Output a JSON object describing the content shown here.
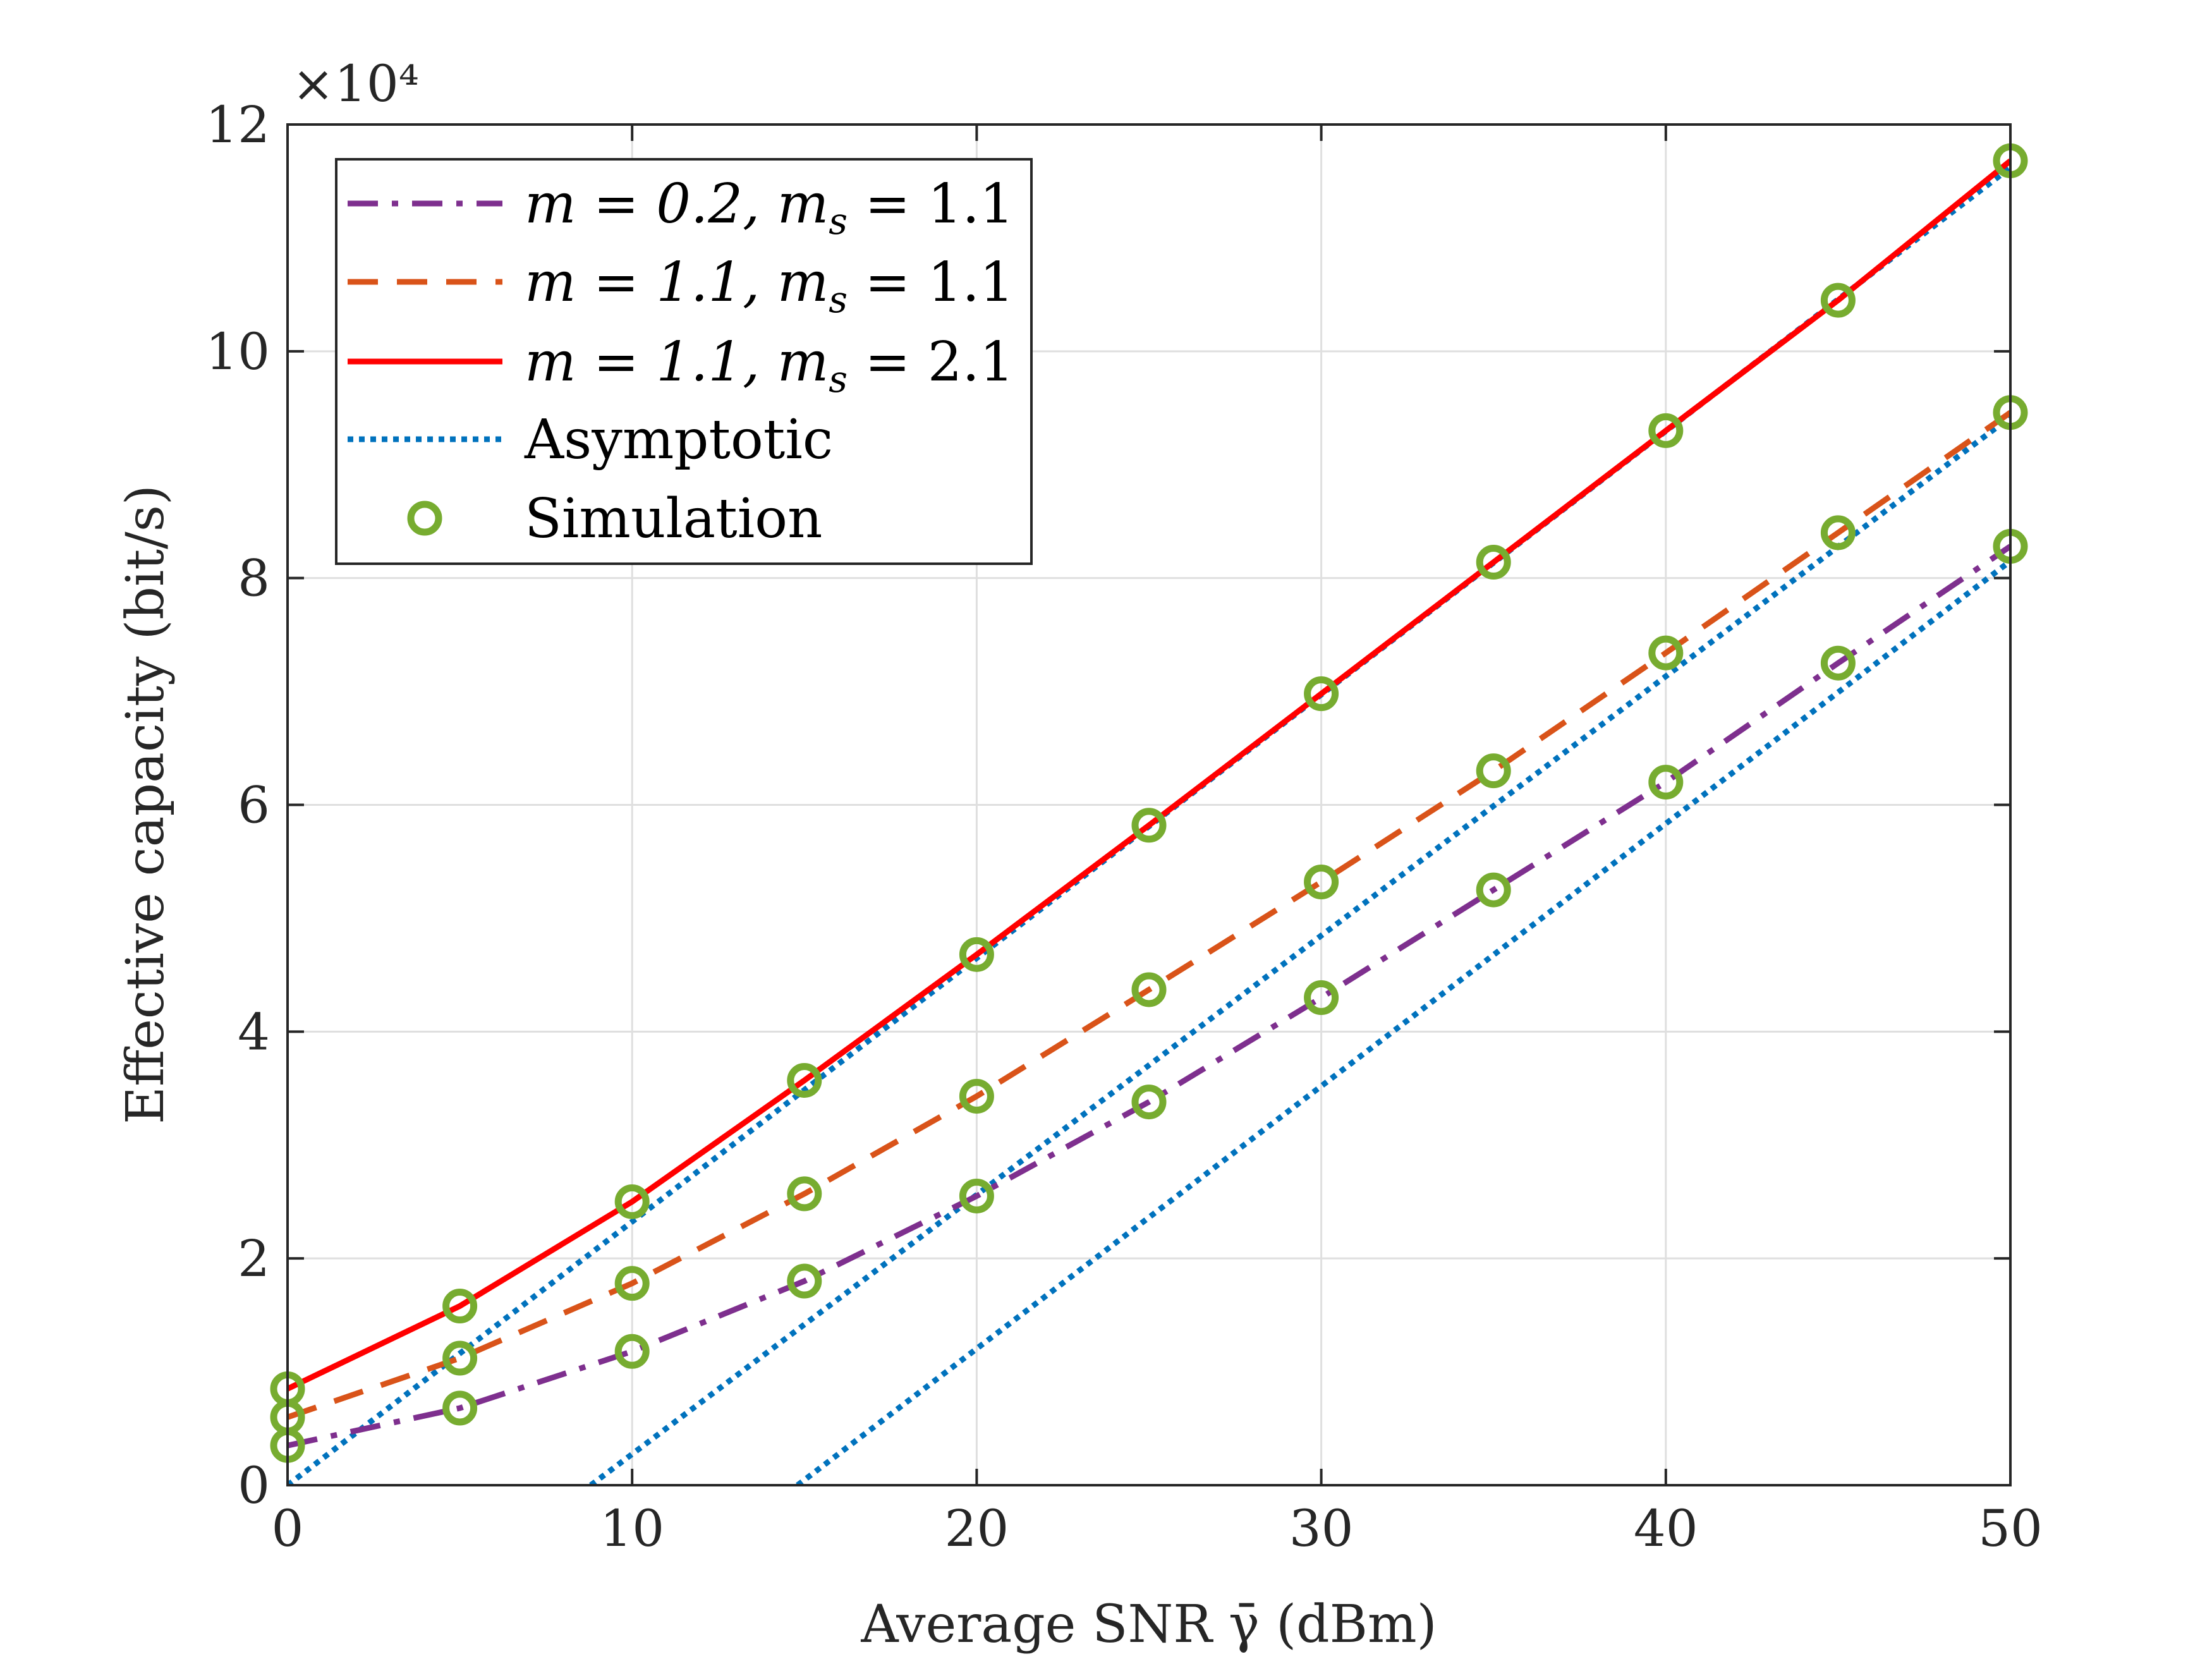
{
  "chart_data": {
    "type": "line",
    "xlabel": "Average SNR γ̄ (dBm)",
    "ylabel": "Effective capacity (bit/s)",
    "y_multiplier_label": "×10⁴",
    "y_multiplier": 10000,
    "xlim": [
      0,
      50
    ],
    "ylim": [
      0,
      12
    ],
    "xticks": [
      0,
      10,
      20,
      30,
      40,
      50
    ],
    "yticks": [
      0,
      2,
      4,
      6,
      8,
      10,
      12
    ],
    "grid": true,
    "legend_position": "top-left",
    "x": [
      0,
      5,
      10,
      15,
      20,
      25,
      30,
      35,
      40,
      45,
      50
    ],
    "series": [
      {
        "name": "m = 0.2, m_s = 1.1",
        "label_parts": [
          "m = 0.2, m",
          "s",
          " = 1.1"
        ],
        "style": "dashdot",
        "color": "#7E2F8E",
        "values": [
          0.35,
          0.68,
          1.18,
          1.8,
          2.55,
          3.38,
          4.3,
          5.25,
          6.2,
          7.25,
          8.28
        ]
      },
      {
        "name": "m = 1.1, m_s = 1.1",
        "label_parts": [
          "m = 1.1, m",
          "s",
          " = 1.1"
        ],
        "style": "dashed",
        "color": "#D95319",
        "values": [
          0.6,
          1.12,
          1.78,
          2.57,
          3.43,
          4.37,
          5.32,
          6.3,
          7.34,
          8.4,
          9.46
        ]
      },
      {
        "name": "m = 1.1, m_s = 2.1",
        "label_parts": [
          "m = 1.1, m",
          "s",
          " = 2.1"
        ],
        "style": "solid",
        "color": "#FF0000",
        "values": [
          0.85,
          1.58,
          2.5,
          3.57,
          4.68,
          5.82,
          6.98,
          8.14,
          9.3,
          10.45,
          11.68
        ]
      }
    ],
    "asymptotic": {
      "name": "Asymptotic",
      "style": "dotted",
      "color": "#0072BD",
      "lines": [
        {
          "x": [
            0,
            50
          ],
          "values": [
            0.0,
            11.62
          ]
        },
        {
          "x": [
            8.8,
            50
          ],
          "values": [
            0.0,
            9.42
          ]
        },
        {
          "x": [
            14.8,
            50
          ],
          "values": [
            0.0,
            8.15
          ]
        }
      ]
    },
    "simulation": {
      "name": "Simulation",
      "marker": "circle",
      "color": "#77AC30",
      "series_refs": [
        0,
        1,
        2
      ]
    }
  }
}
